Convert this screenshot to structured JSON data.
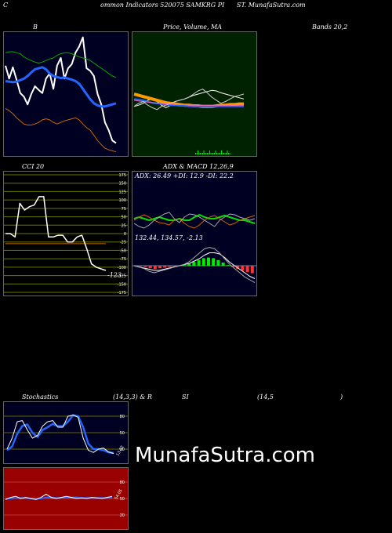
{
  "header": {
    "left": "C",
    "center": "ommon  Indicators 520075 SAMKRG PI",
    "right": "ST.  MunafaSutra.com"
  },
  "watermark": "MunafaSutra.com",
  "colors": {
    "navy": "#000022",
    "green_bg": "#002200",
    "red_bg": "#990000",
    "white": "#ffffff",
    "blue": "#3377ff",
    "orange": "#cc6600",
    "green": "#00aa00",
    "bright_green": "#00ee00"
  },
  "chart_data": [
    {
      "type": "line",
      "panel": "bollinger",
      "title_left": "B",
      "title_right": "Bands 20,2",
      "series": [
        {
          "color": "#ffffff",
          "values": [
            65,
            90,
            68,
            92,
            118,
            125,
            140,
            120,
            105,
            112,
            118,
            90,
            80,
            110,
            65,
            50,
            90,
            70,
            62,
            40,
            28,
            10,
            70,
            75,
            85,
            120,
            140,
            175,
            190,
            210,
            215
          ]
        },
        {
          "color": "#2266ff",
          "values": [
            95,
            96,
            97,
            96,
            93,
            90,
            85,
            78,
            72,
            70,
            68,
            72,
            80,
            85,
            87,
            89,
            88,
            90,
            92,
            95,
            100,
            110,
            120,
            130,
            138,
            142,
            144,
            144,
            142,
            140,
            138
          ]
        },
        {
          "color": "#00aa00",
          "values": [
            40,
            38,
            38,
            40,
            42,
            48,
            52,
            55,
            58,
            60,
            58,
            55,
            52,
            50,
            45,
            42,
            40,
            40,
            42,
            45,
            48,
            50,
            52,
            55,
            60,
            65,
            70,
            75,
            80,
            85,
            88
          ]
        },
        {
          "color": "#cc6600",
          "values": [
            148,
            152,
            158,
            166,
            172,
            178,
            180,
            180,
            178,
            175,
            170,
            168,
            170,
            175,
            178,
            175,
            172,
            170,
            168,
            166,
            170,
            178,
            185,
            190,
            200,
            210,
            218,
            225,
            228,
            230,
            232
          ]
        }
      ]
    },
    {
      "type": "line",
      "panel": "price-ma",
      "title": "Price,  Volume,  MA",
      "series": [
        {
          "color": "#ffffff",
          "values": [
            120,
            118,
            115,
            110,
            108,
            112,
            118,
            122,
            118,
            112,
            110,
            108,
            105,
            102,
            100,
            98,
            96,
            94,
            95,
            98,
            100,
            102,
            104,
            106,
            108
          ]
        },
        {
          "color": "#ff9900",
          "values": [
            100,
            102,
            104,
            106,
            108,
            110,
            112,
            114,
            115,
            116,
            117,
            118,
            118,
            119,
            119,
            120,
            120,
            120,
            119,
            118,
            118,
            117,
            117,
            116,
            116
          ]
        },
        {
          "color": "#2266ff",
          "values": [
            108,
            109,
            110,
            112,
            114,
            115,
            116,
            117,
            118,
            118,
            119,
            119,
            120,
            120,
            120,
            120,
            120,
            120,
            120,
            120,
            120,
            120,
            120,
            120,
            120
          ]
        },
        {
          "color": "#ff66cc",
          "values": [
            110,
            111,
            112,
            113,
            114,
            115,
            115,
            116,
            116,
            117,
            117,
            117,
            118,
            118,
            118,
            118,
            118,
            118,
            118,
            118,
            118,
            118,
            118,
            118,
            118
          ]
        },
        {
          "color": "#cccccc",
          "values": [
            120,
            115,
            112,
            118,
            122,
            125,
            120,
            118,
            115,
            112,
            110,
            108,
            105,
            100,
            95,
            92,
            98,
            105,
            110,
            115,
            112,
            108,
            104,
            102,
            100
          ]
        }
      ]
    },
    {
      "type": "line",
      "panel": "cci",
      "title_left": "CCI 20",
      "ticks": [
        "175",
        "150",
        "125",
        "100",
        "75",
        "50",
        "25",
        "0",
        "-25",
        "-50",
        "-75",
        "-100",
        "-125",
        "-150",
        "-175"
      ],
      "value_label": "-123",
      "ylim": [
        -175,
        175
      ],
      "series": [
        {
          "color": "#ffffff",
          "values": [
            0,
            0,
            -10,
            90,
            70,
            80,
            85,
            110,
            110,
            -10,
            -10,
            -5,
            -5,
            -25,
            -25,
            -10,
            -5,
            -45,
            -90,
            -100,
            -105,
            -110
          ]
        },
        {
          "color": "#cc6600",
          "values": [
            -30,
            -30,
            -30,
            -30,
            -30,
            -30,
            -30,
            -30,
            -30,
            -30,
            -30,
            -30,
            -30,
            -30,
            -30,
            -30,
            -30,
            -30,
            -30,
            -30,
            -30,
            -30
          ]
        }
      ]
    },
    {
      "type": "line",
      "panel": "adx-macd",
      "title": "ADX  & MACD 12,26,9",
      "adx_label": "ADX: 26.49  +DI: 12.9  -DI: 22.2",
      "macd_label": "132.44,   134.57,   -2.13",
      "series": [
        {
          "color": "#00dd00",
          "values": [
            60,
            58,
            60,
            62,
            60,
            58,
            60,
            62,
            62,
            60,
            62,
            62,
            58,
            55,
            58,
            60,
            60,
            58,
            56,
            58,
            60,
            62,
            62,
            64,
            66
          ]
        },
        {
          "color": "#cc6600",
          "values": [
            62,
            58,
            55,
            58,
            62,
            65,
            66,
            68,
            62,
            60,
            66,
            70,
            72,
            68,
            62,
            58,
            56,
            60,
            64,
            68,
            66,
            62,
            60,
            58,
            56
          ]
        },
        {
          "color": "#aaaaaa",
          "values": [
            66,
            70,
            72,
            68,
            62,
            58,
            54,
            52,
            60,
            65,
            58,
            54,
            55,
            58,
            62,
            66,
            70,
            62,
            58,
            54,
            55,
            58,
            60,
            62,
            60
          ]
        }
      ]
    },
    {
      "type": "line",
      "panel": "stochastics",
      "title": "Stochastics",
      "title_mid": "(14,3,3) & R",
      "title_right": "SI",
      "title_params": "(14,5",
      "title_close": ")",
      "ticks": [
        "80",
        "50",
        "20"
      ],
      "value_label": "13.52",
      "ylim": [
        0,
        100
      ],
      "series": [
        {
          "color": "#ffffff",
          "values": [
            20,
            40,
            70,
            72,
            55,
            40,
            45,
            62,
            70,
            72,
            60,
            60,
            80,
            82,
            78,
            40,
            18,
            14,
            20,
            22,
            15,
            12
          ]
        },
        {
          "color": "#2266ff",
          "values": [
            18,
            25,
            48,
            62,
            65,
            50,
            42,
            55,
            60,
            66,
            62,
            62,
            70,
            82,
            80,
            60,
            30,
            20,
            20,
            18,
            14,
            13
          ]
        }
      ]
    },
    {
      "type": "line",
      "panel": "rsi",
      "ticks": [
        "80",
        "50",
        "20"
      ],
      "value_label": "54.05",
      "ylim": [
        0,
        100
      ],
      "series": [
        {
          "color": "#ffffff",
          "values": [
            48,
            52,
            54,
            50,
            52,
            50,
            48,
            52,
            58,
            52,
            50,
            52,
            54,
            52,
            50,
            51,
            50,
            52,
            51,
            50,
            52,
            54
          ]
        },
        {
          "color": "#2266ff",
          "values": [
            50,
            50,
            51,
            51,
            51,
            50,
            50,
            50,
            52,
            52,
            51,
            51,
            52,
            52,
            52,
            51,
            51,
            51,
            51,
            51,
            51,
            52
          ]
        }
      ]
    }
  ]
}
